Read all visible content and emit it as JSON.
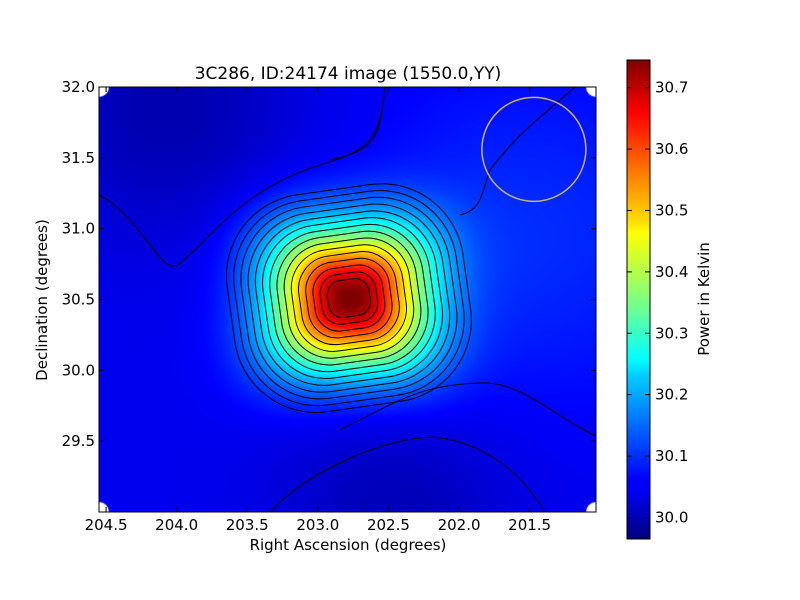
{
  "chart_data": {
    "type": "heatmap",
    "title": "3C286, ID:24174 image (1550.0,YY)",
    "xlabel": "Right Ascension (degrees)",
    "ylabel": "Declination (degrees)",
    "xlim": [
      204.55,
      201.03
    ],
    "ylim": [
      29.0,
      32.0
    ],
    "xticks": [
      "204.5",
      "204.0",
      "203.5",
      "203.0",
      "202.5",
      "202.0",
      "201.5"
    ],
    "xtick_values": [
      204.5,
      204.0,
      203.5,
      203.0,
      202.5,
      202.0,
      201.5
    ],
    "yticks": [
      "29.5",
      "30.0",
      "30.5",
      "31.0",
      "31.5",
      "32.0"
    ],
    "ytick_values": [
      29.5,
      30.0,
      30.5,
      31.0,
      31.5,
      32.0
    ],
    "colormap": "jet",
    "colorbar": {
      "label": "Power in Kelvin",
      "range": [
        29.965,
        30.745
      ],
      "ticks": [
        "30.0",
        "30.1",
        "30.2",
        "30.3",
        "30.4",
        "30.5",
        "30.6",
        "30.7"
      ],
      "tick_values": [
        30.0,
        30.1,
        30.2,
        30.3,
        30.4,
        30.5,
        30.6,
        30.7
      ]
    },
    "source": {
      "ra": 202.78,
      "dec": 30.51,
      "peak_kelvin": 30.74
    },
    "background_kelvin": 30.05,
    "contours": "black, ~16 levels",
    "beam_circle": {
      "ra": 201.47,
      "dec": 31.56,
      "color": "#c8b464"
    }
  }
}
